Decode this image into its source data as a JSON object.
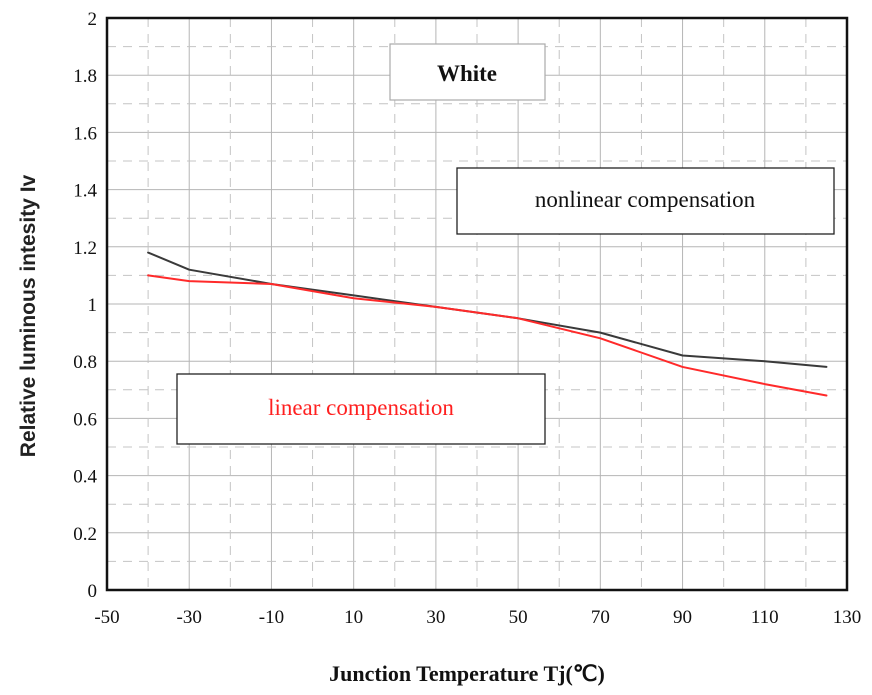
{
  "chart_data": {
    "type": "line",
    "title": "White",
    "xlabel": "Junction Temperature  Tj(℃)",
    "ylabel": "Relative luminous intesity Iv",
    "xlim": [
      -50,
      130
    ],
    "ylim": [
      0,
      2
    ],
    "x_ticks": [
      "-50",
      "-30",
      "-10",
      "10",
      "30",
      "50",
      "70",
      "90",
      "110",
      "130"
    ],
    "y_ticks": [
      "0",
      "0.2",
      "0.4",
      "0.6",
      "0.8",
      "1",
      "1.2",
      "1.4",
      "1.6",
      "1.8",
      "2"
    ],
    "grid": true,
    "series": [
      {
        "name": "nonlinear compensation",
        "color": "#3a3a3a",
        "x": [
          -40,
          -30,
          -10,
          10,
          30,
          50,
          70,
          90,
          110,
          125
        ],
        "y": [
          1.18,
          1.12,
          1.07,
          1.03,
          0.99,
          0.95,
          0.9,
          0.82,
          0.8,
          0.78
        ]
      },
      {
        "name": "linear compensation",
        "color": "#ff2a2a",
        "x": [
          -40,
          -30,
          -10,
          10,
          30,
          50,
          70,
          90,
          110,
          125
        ],
        "y": [
          1.1,
          1.08,
          1.07,
          1.02,
          0.99,
          0.95,
          0.88,
          0.78,
          0.72,
          0.68
        ]
      }
    ]
  }
}
